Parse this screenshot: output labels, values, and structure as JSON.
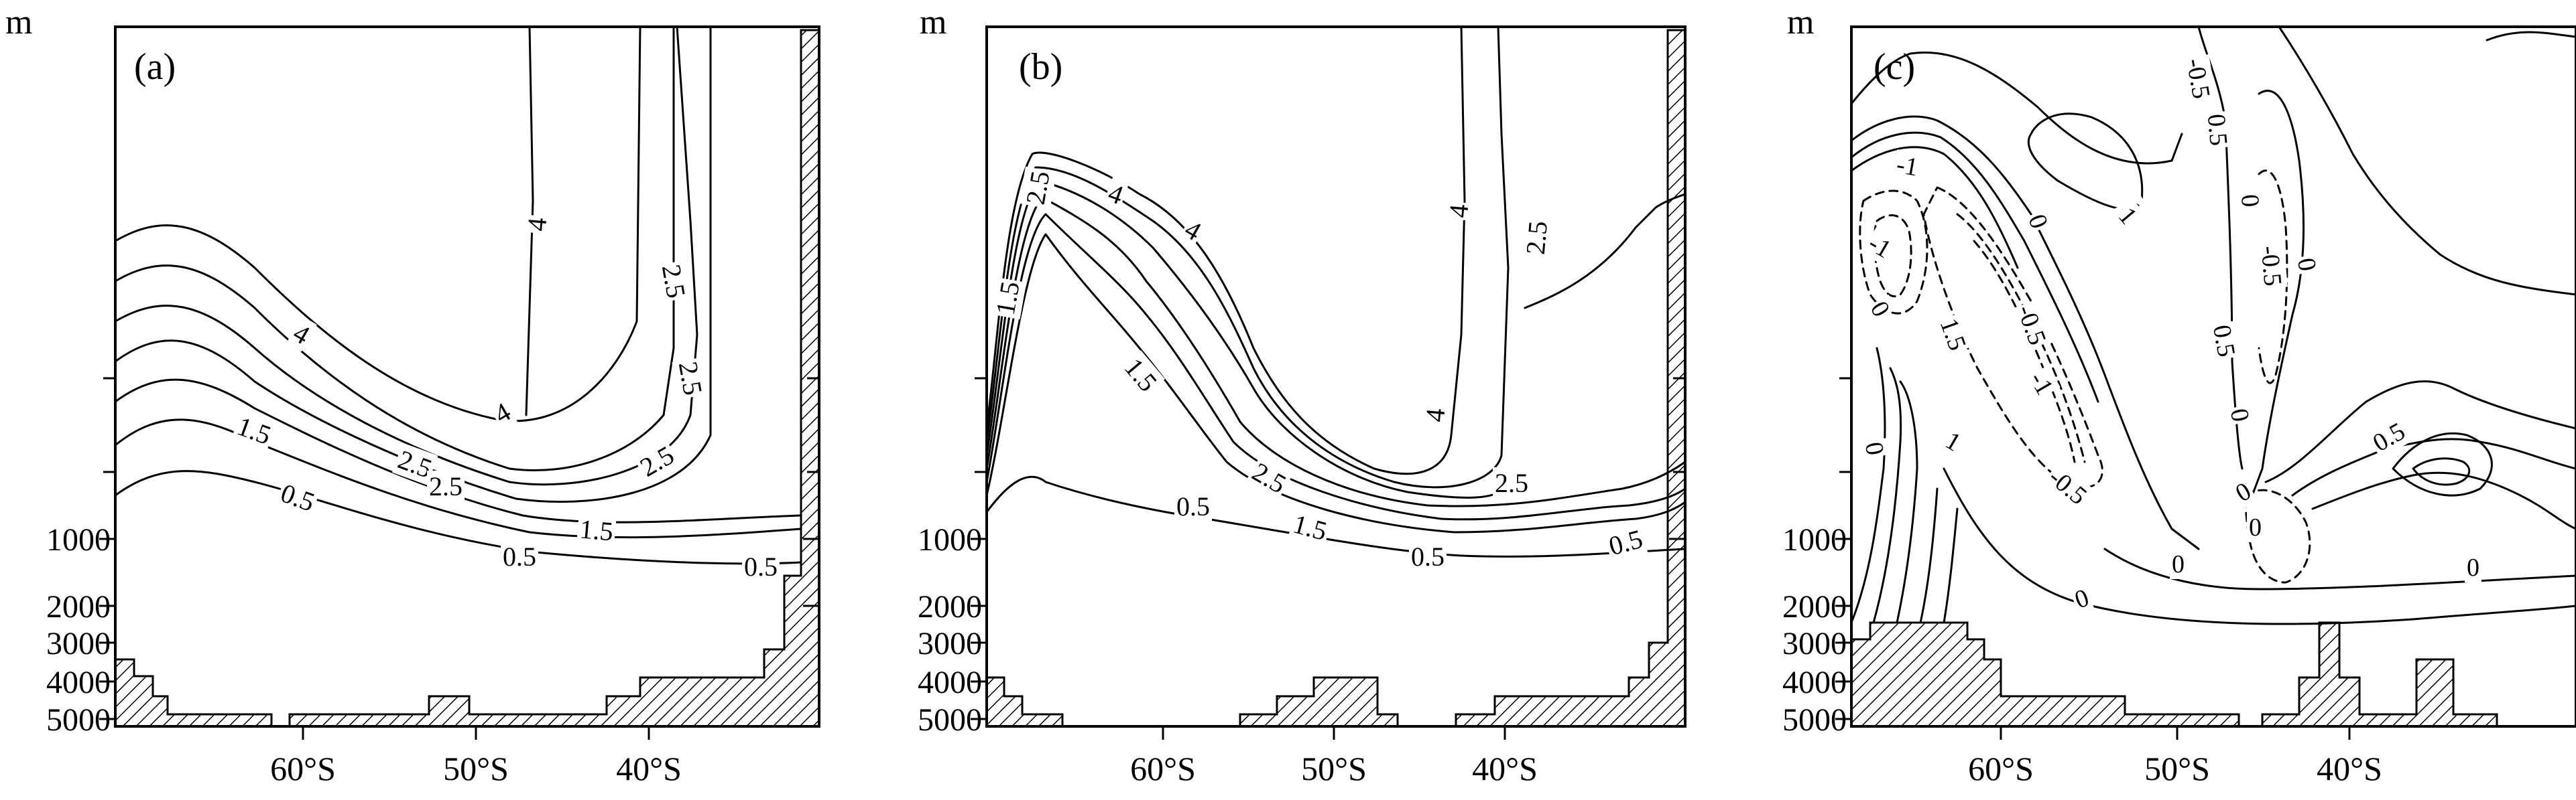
{
  "chart_data": [
    {
      "type": "contour",
      "panel_label": "(a)",
      "ylabel": "m",
      "x_ticks": [
        "60°S",
        "50°S",
        "40°S"
      ],
      "y_ticks": [
        "1000",
        "2000",
        "3000",
        "4000",
        "5000"
      ],
      "contour_labels": [
        "4",
        "4",
        "4",
        "2.5",
        "2.5",
        "2.5",
        "2.5",
        "2.5",
        "1.5",
        "1.5",
        "0.5",
        "0.5",
        "0.5"
      ]
    },
    {
      "type": "contour",
      "panel_label": "(b)",
      "ylabel": "m",
      "x_ticks": [
        "60°S",
        "50°S",
        "40°S"
      ],
      "y_ticks": [
        "1000",
        "2000",
        "3000",
        "4000",
        "5000"
      ],
      "contour_labels": [
        "2.5",
        "4",
        "4",
        "1.5",
        "1.5",
        "4",
        "2.5",
        "2.5",
        "4",
        "2.5",
        "1.5",
        "0.5",
        "0.5",
        "0.5"
      ]
    },
    {
      "type": "contour",
      "panel_label": "(c)",
      "ylabel": "m",
      "x_ticks": [
        "60°S",
        "50°S",
        "40°S"
      ],
      "y_ticks": [
        "1000",
        "2000",
        "3000",
        "4000",
        "5000"
      ],
      "contour_labels": [
        "-0.5",
        "-1",
        "-1",
        "0",
        "1",
        "1.5",
        "-0.5",
        "-1",
        "0",
        "0.5",
        "0",
        "-0.5",
        "0.5",
        "0",
        "0",
        "0",
        "1",
        "0",
        "1",
        "0",
        "0.5",
        "0",
        "-0.5",
        "0",
        "0"
      ]
    }
  ]
}
